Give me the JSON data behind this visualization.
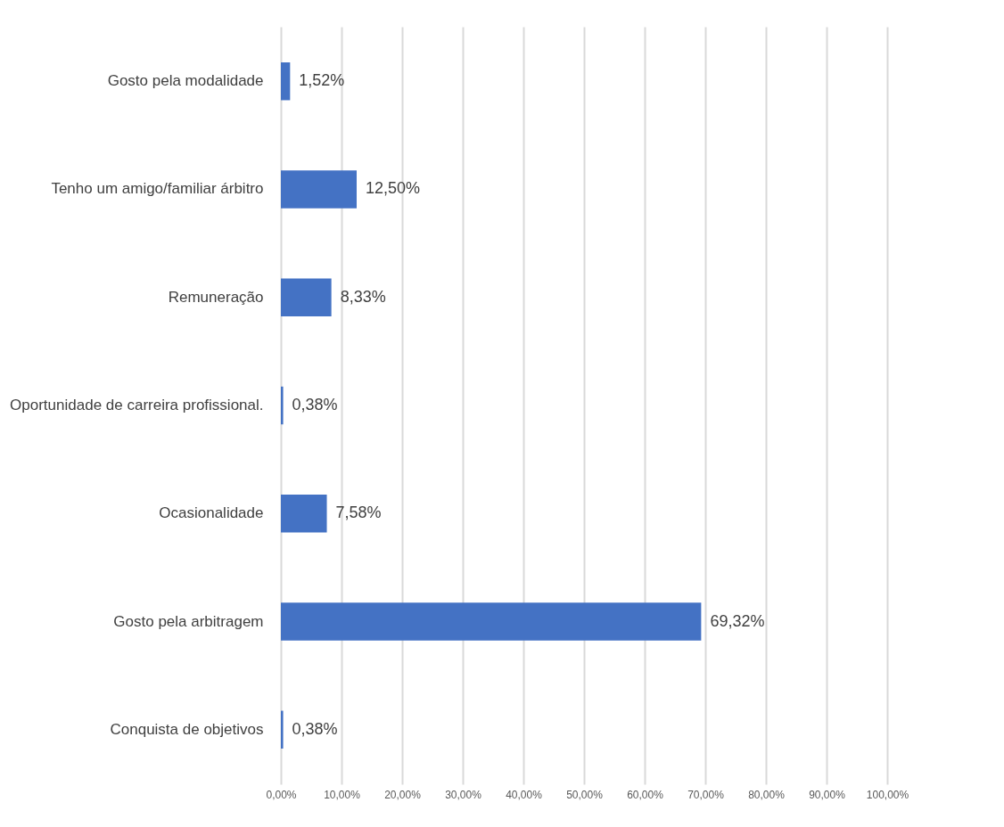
{
  "chart_data": {
    "type": "bar",
    "orientation": "horizontal",
    "categories": [
      "Gosto pela modalidade",
      "Tenho um amigo/familiar árbitro",
      "Remuneração",
      "Oportunidade de carreira profissional.",
      "Ocasionalidade",
      "Gosto pela arbitragem",
      "Conquista de objetivos"
    ],
    "values": [
      1.52,
      12.5,
      8.33,
      0.38,
      7.58,
      69.32,
      0.38
    ],
    "value_labels": [
      "1,52%",
      "12,50%",
      "8,33%",
      "0,38%",
      "7,58%",
      "69,32%",
      "0,38%"
    ],
    "color": "#4472c4",
    "xlim": [
      0,
      100
    ],
    "xticks": [
      {
        "value": 0,
        "label": "0,00%"
      },
      {
        "value": 10,
        "label": "10,00%"
      },
      {
        "value": 20,
        "label": "20,00%"
      },
      {
        "value": 30,
        "label": "30,00%"
      },
      {
        "value": 40,
        "label": "40,00%"
      },
      {
        "value": 50,
        "label": "50,00%"
      },
      {
        "value": 60,
        "label": "60,00%"
      },
      {
        "value": 70,
        "label": "70,00%"
      },
      {
        "value": 80,
        "label": "80,00%"
      },
      {
        "value": 90,
        "label": "90,00%"
      },
      {
        "value": 100,
        "label": "100,00%"
      }
    ],
    "grid": "x"
  }
}
